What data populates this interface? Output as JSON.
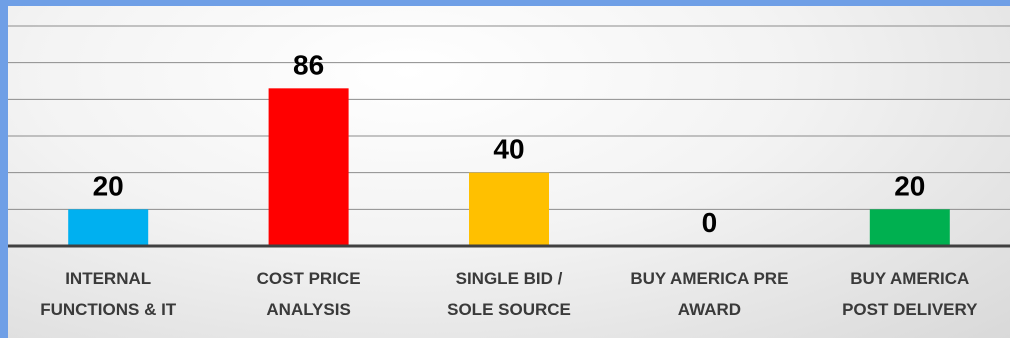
{
  "chart_data": {
    "type": "bar",
    "categories": [
      "INTERNAL\nFUNCTIONS & IT",
      "COST PRICE\nANALYSIS",
      "SINGLE BID /\nSOLE SOURCE",
      "BUY AMERICA PRE\nAWARD",
      "BUY AMERICA\nPOST DELIVERY"
    ],
    "values": [
      20,
      86,
      40,
      0,
      20
    ],
    "data_labels": [
      "20",
      "86",
      "40",
      "0",
      "20"
    ],
    "colors": [
      "#00b0f0",
      "#ff0000",
      "#ffc000",
      "#808080",
      "#00b050"
    ],
    "ylim": [
      0,
      120
    ],
    "grid": true,
    "legend": "none",
    "title": "",
    "xlabel": "",
    "ylabel": ""
  }
}
